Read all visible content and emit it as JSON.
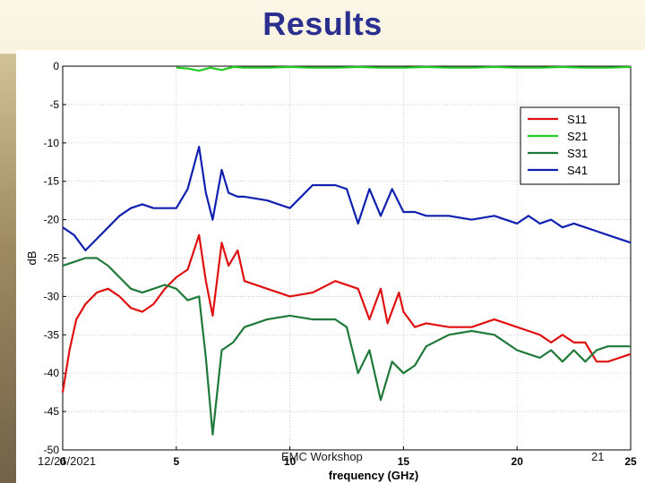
{
  "slide": {
    "title": "Results",
    "footer_date": "12/26/2021",
    "footer_event": "EMC Workshop",
    "footer_page": "21"
  },
  "colors": {
    "title": "#2b2f8f",
    "S11": "#e01010",
    "S21": "#22cc22",
    "S31": "#1f7a3a",
    "S41": "#1020b0"
  },
  "chart_data": {
    "type": "line",
    "title": "",
    "xlabel": "frequency (GHz)",
    "ylabel": "dB",
    "xlim": [
      0,
      25
    ],
    "ylim": [
      -50,
      0
    ],
    "xticks": [
      0,
      5,
      10,
      15,
      20,
      25
    ],
    "yticks": [
      0,
      -5,
      -10,
      -15,
      -20,
      -25,
      -30,
      -35,
      -40,
      -45,
      -50
    ],
    "grid": true,
    "legend_position": "top-right",
    "series": [
      {
        "name": "S11",
        "color": "#e01010",
        "x": [
          0,
          0.3,
          0.6,
          1,
          1.5,
          2,
          2.5,
          3,
          3.5,
          4,
          4.5,
          5,
          5.5,
          6,
          6.3,
          6.6,
          7,
          7.3,
          7.7,
          8,
          9,
          10,
          11,
          12,
          13,
          13.5,
          14,
          14.3,
          14.8,
          15,
          15.5,
          16,
          17,
          18,
          19,
          20,
          20.5,
          21,
          21.5,
          22,
          22.5,
          23,
          23.5,
          24,
          25
        ],
        "y": [
          -42.5,
          -37,
          -33,
          -31,
          -29.5,
          -29,
          -30,
          -31.5,
          -32,
          -31,
          -29,
          -27.5,
          -26.5,
          -22,
          -28,
          -32.5,
          -23,
          -26,
          -24,
          -28,
          -29,
          -30,
          -29.5,
          -28,
          -29,
          -33,
          -29,
          -33.5,
          -29.5,
          -32,
          -34,
          -33.5,
          -34,
          -34,
          -33,
          -34,
          -34.5,
          -35,
          -36,
          -35,
          -36,
          -36,
          -38.5,
          -38.5,
          -37.5
        ]
      },
      {
        "name": "S21",
        "color": "#22cc22",
        "x": [
          5,
          5.5,
          6,
          6.5,
          7,
          7.5,
          8,
          9,
          10,
          11,
          12,
          13,
          14,
          15,
          16,
          17,
          18,
          19,
          20,
          21,
          22,
          23,
          24,
          25
        ],
        "y": [
          -0.2,
          -0.3,
          -0.6,
          -0.2,
          -0.5,
          -0.1,
          -0.2,
          -0.2,
          -0.1,
          -0.2,
          -0.2,
          -0.1,
          -0.2,
          -0.2,
          -0.1,
          -0.2,
          -0.2,
          -0.1,
          -0.2,
          -0.2,
          -0.1,
          -0.2,
          -0.2,
          -0.1
        ]
      },
      {
        "name": "S31",
        "color": "#1f7a3a",
        "x": [
          0,
          0.5,
          1,
          1.5,
          2,
          2.5,
          3,
          3.5,
          4,
          4.5,
          5,
          5.5,
          6,
          6.3,
          6.6,
          7,
          7.5,
          8,
          9,
          10,
          11,
          12,
          12.5,
          13,
          13.5,
          14,
          14.5,
          15,
          15.5,
          16,
          17,
          18,
          19,
          20,
          20.5,
          21,
          21.5,
          22,
          22.5,
          23,
          23.5,
          24,
          25
        ],
        "y": [
          -26,
          -25.5,
          -25,
          -25,
          -26,
          -27.5,
          -29,
          -29.5,
          -29,
          -28.5,
          -29,
          -30.5,
          -30,
          -38,
          -48,
          -37,
          -36,
          -34,
          -33,
          -32.5,
          -33,
          -33,
          -34,
          -40,
          -37,
          -43.5,
          -38.5,
          -40,
          -39,
          -36.5,
          -35,
          -34.5,
          -35,
          -37,
          -37.5,
          -38,
          -37,
          -38.5,
          -37,
          -38.5,
          -37,
          -36.5,
          -36.5
        ]
      },
      {
        "name": "S41",
        "color": "#1020b0",
        "x": [
          0,
          0.5,
          1,
          1.5,
          2,
          2.5,
          3,
          3.5,
          4,
          4.5,
          5,
          5.5,
          6,
          6.3,
          6.6,
          7,
          7.3,
          7.7,
          8,
          9,
          10,
          11,
          12,
          12.5,
          13,
          13.5,
          14,
          14.5,
          15,
          15.5,
          16,
          17,
          18,
          19,
          20,
          20.5,
          21,
          21.5,
          22,
          22.5,
          23,
          23.5,
          24,
          25
        ],
        "y": [
          -21,
          -22,
          -24,
          -22.5,
          -21,
          -19.5,
          -18.5,
          -18,
          -18.5,
          -18.5,
          -18.5,
          -16,
          -10.5,
          -16.5,
          -20,
          -13.5,
          -16.5,
          -17,
          -17,
          -17.5,
          -18.5,
          -15.5,
          -15.5,
          -16,
          -20.5,
          -16,
          -19.5,
          -16,
          -19,
          -19,
          -19.5,
          -19.5,
          -20,
          -19.5,
          -20.5,
          -19.5,
          -20.5,
          -20,
          -21,
          -20.5,
          -21,
          -21.5,
          -22,
          -23
        ]
      }
    ]
  }
}
